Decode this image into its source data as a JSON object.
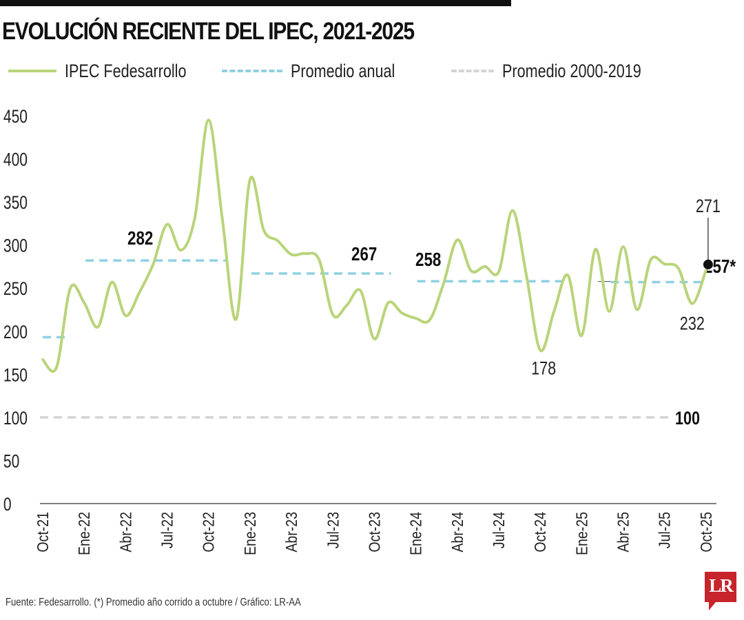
{
  "title": "EVOLUCIÓN RECIENTE DEL IPEC, 2021-2025",
  "legend": [
    {
      "label": "IPEC Fedesarrollo",
      "color": "#b9d47a",
      "style": "solid"
    },
    {
      "label": "Promedio anual",
      "color": "#8fd0e3",
      "style": "dashed"
    },
    {
      "label": "Promedio 2000-2019",
      "color": "#d4d4d4",
      "style": "dashed"
    }
  ],
  "footer": "Fuente: Fedesarrollo. (*) Promedio año corrido a octubre / Gráfico: LR-AA",
  "logo_text": "LR",
  "chart_data": {
    "type": "line",
    "title": "EVOLUCIÓN RECIENTE DEL IPEC, 2021-2025",
    "xlabel": "",
    "ylabel": "",
    "ylim": [
      0,
      450
    ],
    "y_ticks": [
      "0",
      "50",
      "100",
      "150",
      "200",
      "250",
      "300",
      "350",
      "400",
      "450"
    ],
    "x_tick_labels": [
      "Oct-21",
      "Ene-22",
      "Abr-22",
      "Jul-22",
      "Oct-22",
      "Ene-23",
      "Abr-23",
      "Jul-23",
      "Oct-23",
      "Ene-24",
      "Abr-24",
      "Jul-24",
      "Oct-24",
      "Ene-25",
      "Abr-25",
      "Jul-25",
      "Oct-25"
    ],
    "grid": false,
    "legend_position": "top",
    "series": [
      {
        "name": "IPEC Fedesarrollo",
        "color": "#b9d47a",
        "values": [
          167,
          158,
          250,
          233,
          205,
          257,
          218,
          245,
          278,
          324,
          294,
          331,
          445,
          330,
          214,
          376,
          317,
          305,
          289,
          290,
          283,
          219,
          230,
          247,
          191,
          233,
          221,
          215,
          213,
          255,
          306,
          270,
          275,
          269,
          340,
          265,
          178,
          223,
          265,
          195,
          295,
          223,
          298,
          225,
          283,
          278,
          273,
          232,
          271
        ]
      }
    ],
    "annual_averages": [
      {
        "value": 193,
        "label": ""
      },
      {
        "value": 282,
        "label": "282"
      },
      {
        "value": 267,
        "label": "267"
      },
      {
        "value": 258,
        "label": "258"
      },
      {
        "value": 257,
        "label": "257*"
      }
    ],
    "historical_average": {
      "value": 100,
      "label": "100"
    },
    "annotations": [
      {
        "label": "178",
        "value": 178
      },
      {
        "label": "232",
        "value": 232
      },
      {
        "label": "271",
        "value": 271
      }
    ],
    "colors": {
      "line": "#b9d47a",
      "annual": "#8fd0e3",
      "historical": "#d4d4d4",
      "axis": "#555555"
    }
  }
}
